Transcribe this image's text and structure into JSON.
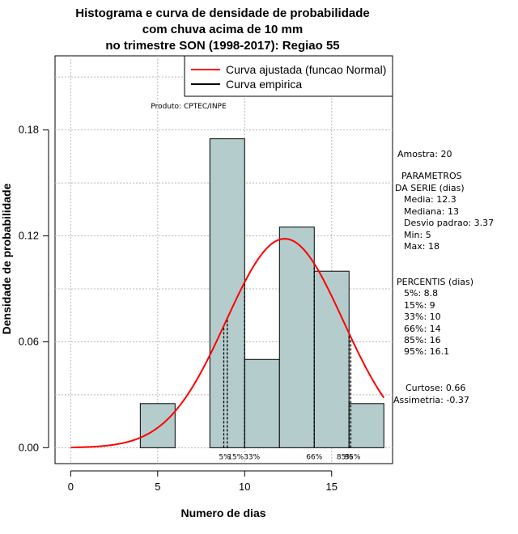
{
  "chart_data": {
    "type": "bar",
    "title_lines": [
      "Histograma e curva de densidade de probabilidade",
      "com chuva acima de 10 mm",
      "no trimestre SON (1998-2017): Regiao 55"
    ],
    "xlabel": "Numero de dias",
    "ylabel": "Densidade de probabilidade",
    "xlim": [
      -0.9,
      18.5
    ],
    "ylim": [
      -0.009,
      0.222
    ],
    "xticks": [
      0,
      5,
      10,
      15
    ],
    "xtick_labels": [
      "0",
      "5",
      "10",
      "15"
    ],
    "yticks": [
      0.0,
      0.06,
      0.12,
      0.18
    ],
    "ytick_labels": [
      "0.00",
      "0.06",
      "0.12",
      "0.18"
    ],
    "grid": true,
    "bins": [
      {
        "from": 4,
        "to": 6,
        "density": 0.025
      },
      {
        "from": 6,
        "to": 8,
        "density": 0.0
      },
      {
        "from": 8,
        "to": 10,
        "density": 0.175
      },
      {
        "from": 10,
        "to": 12,
        "density": 0.05
      },
      {
        "from": 12,
        "to": 14,
        "density": 0.125
      },
      {
        "from": 14,
        "to": 16,
        "density": 0.1
      },
      {
        "from": 16,
        "to": 18,
        "density": 0.025
      }
    ],
    "bar_color": "#b4cccc",
    "normal_curve": {
      "mean": 12.3,
      "sd": 3.37,
      "x_from": 0,
      "x_to": 18,
      "color": "#ff0000"
    },
    "percentile_lines": [
      {
        "label": "5%",
        "x": 8.8
      },
      {
        "label": "15%",
        "x": 9
      },
      {
        "label": "33%",
        "x": 10
      },
      {
        "label": "66%",
        "x": 14
      },
      {
        "label": "85%",
        "x": 16
      },
      {
        "label": "95%",
        "x": 16.1
      }
    ],
    "percentile_label_groups": [
      {
        "text": "5%",
        "x": 8.85
      },
      {
        "text": "15%33%",
        "x": 9.95
      },
      {
        "text": "66%",
        "x": 14
      },
      {
        "text": "85%",
        "x": 15.75
      },
      {
        "text": "95%",
        "x": 16.2
      }
    ],
    "legend": {
      "position": "top-right",
      "entries": [
        {
          "label": "Curva ajustada (funcao Normal)",
          "color": "#ff0000"
        },
        {
          "label": "Curva empirica",
          "color": "#000000"
        }
      ]
    },
    "credit": "Produto: CPTEC/INPE",
    "side_panel": {
      "amostra": "Amostra: 20",
      "param_title_1": "PARAMETROS",
      "param_title_2": "DA SERIE (dias)",
      "params": [
        "Media: 12.3",
        "Mediana: 13",
        "Desvio padrao: 3.37",
        "Min: 5",
        "Max: 18"
      ],
      "perc_title": "PERCENTIS (dias)",
      "percentis": [
        "5%: 8.8",
        "15%: 9",
        "33%: 10",
        "66%: 14",
        "85%: 16",
        "95%: 16.1"
      ],
      "curtose": "Curtose: 0.66",
      "assimetria": "Assimetria: -0.37"
    }
  }
}
